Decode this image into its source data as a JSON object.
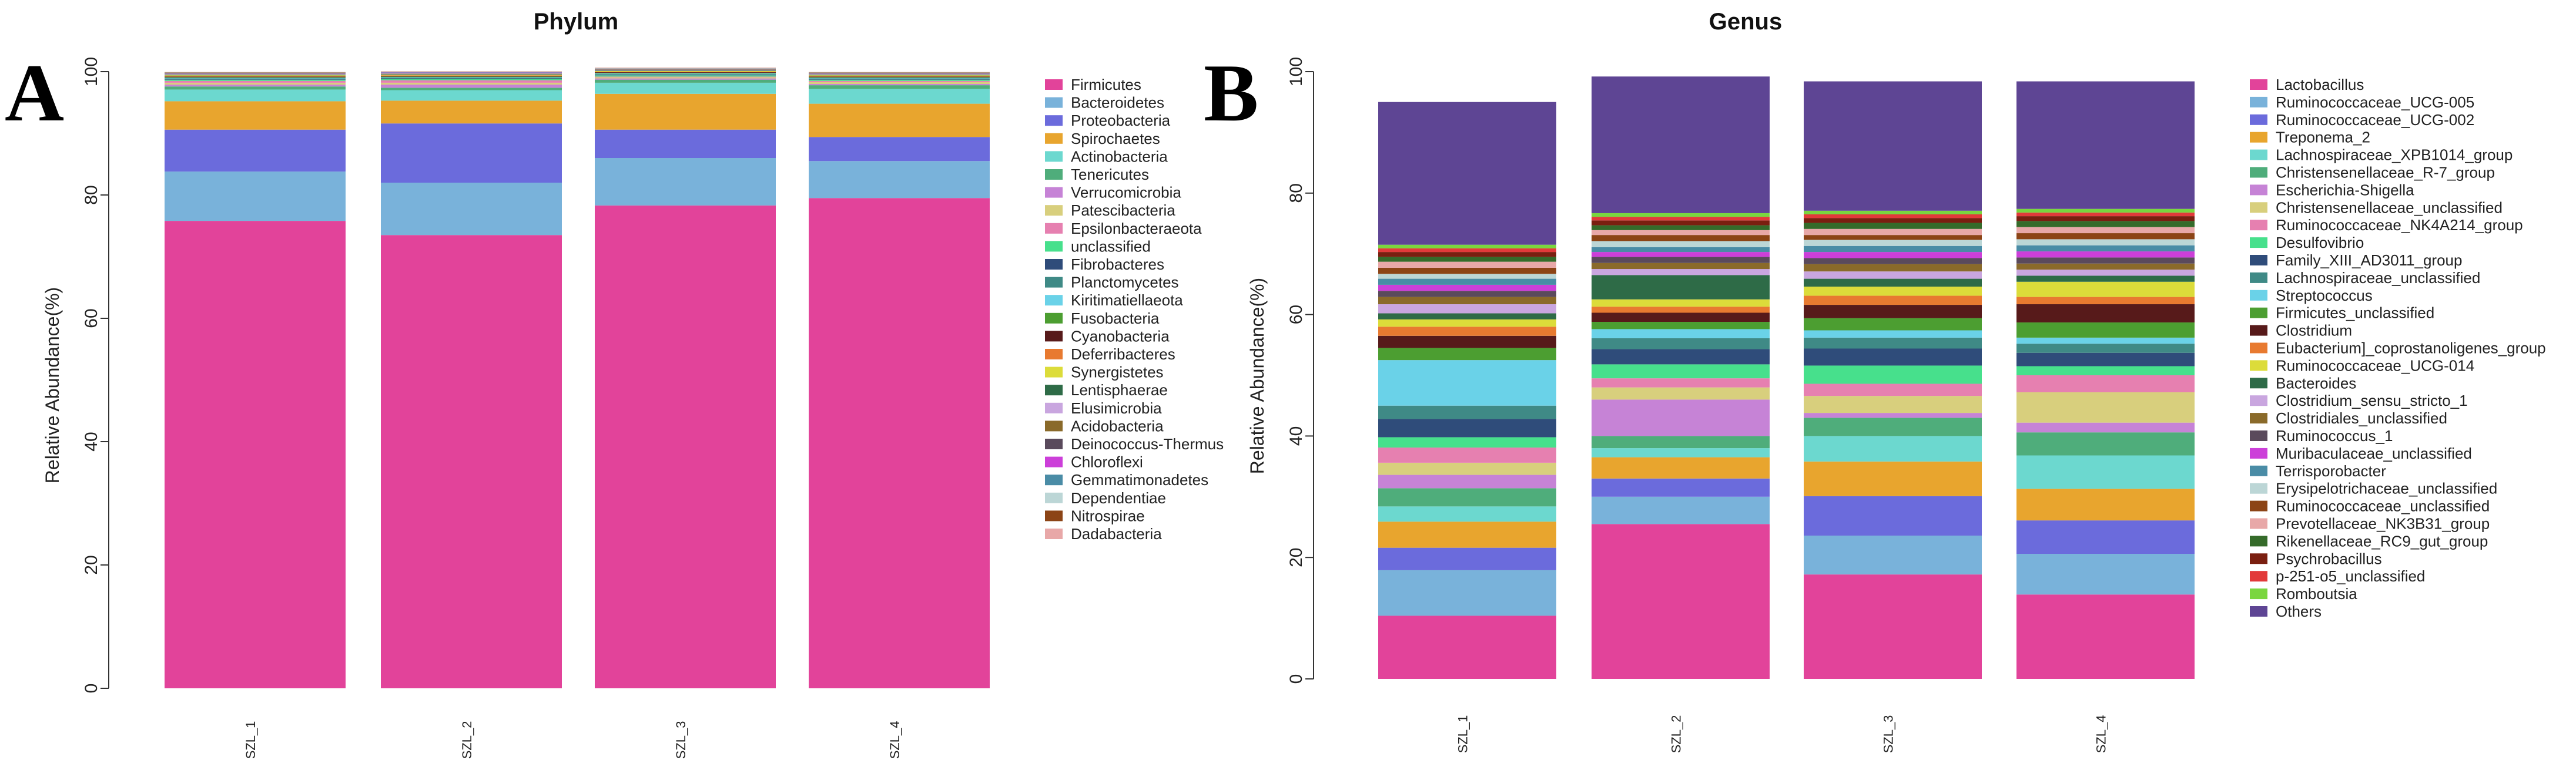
{
  "panels": {
    "a": {
      "letter": "A"
    },
    "b": {
      "letter": "B"
    }
  },
  "chart_data": [
    {
      "type": "bar",
      "stacked": true,
      "title": "Phylum",
      "xlabel": "",
      "ylabel": "Relative Abundance(%)",
      "ylim": [
        0,
        100
      ],
      "yticks": [
        "0",
        "20",
        "40",
        "60",
        "80",
        "100"
      ],
      "legend_position": "right",
      "categories": [
        "SZL_1",
        "SZL_2",
        "SZL_3",
        "SZL_4"
      ],
      "series": [
        {
          "name": "Firmicutes",
          "color": "#e2439a",
          "values": [
            75.8,
            73.5,
            78.3,
            79.5
          ]
        },
        {
          "name": "Bacteroidetes",
          "color": "#79b2da",
          "values": [
            8.0,
            8.5,
            7.7,
            6.0
          ]
        },
        {
          "name": "Proteobacteria",
          "color": "#6b6bdc",
          "values": [
            6.8,
            9.6,
            4.6,
            3.9
          ]
        },
        {
          "name": "Spirochaetes",
          "color": "#e8a52e",
          "values": [
            4.6,
            3.7,
            5.8,
            5.4
          ]
        },
        {
          "name": "Actinobacteria",
          "color": "#6cd8cf",
          "values": [
            1.9,
            1.7,
            1.8,
            2.4
          ]
        },
        {
          "name": "Tenericutes",
          "color": "#4fad7b",
          "values": [
            0.5,
            0.4,
            0.5,
            0.6
          ]
        },
        {
          "name": "Verrucomicrobia",
          "color": "#c683d6",
          "values": [
            0.3,
            0.5,
            0.2,
            0.2
          ]
        },
        {
          "name": "Patescibacteria",
          "color": "#d8cf7d",
          "values": [
            0.3,
            0.3,
            0.2,
            0.3
          ]
        },
        {
          "name": "Epsilonbacteraeota",
          "color": "#e680b0",
          "values": [
            0.3,
            0.4,
            0.1,
            0.2
          ]
        },
        {
          "name": "unclassified",
          "color": "#47e08c",
          "values": [
            0.2,
            0.2,
            0.2,
            0.2
          ]
        },
        {
          "name": "Fibrobacteres",
          "color": "#2f4c7a",
          "values": [
            0.1,
            0.1,
            0.1,
            0.1
          ]
        },
        {
          "name": "Planctomycetes",
          "color": "#3f8a86",
          "values": [
            0.1,
            0.1,
            0.1,
            0.1
          ]
        },
        {
          "name": "Kiritimatiellaeota",
          "color": "#6ad2e8",
          "values": [
            0.1,
            0.1,
            0.1,
            0.1
          ]
        },
        {
          "name": "Fusobacteria",
          "color": "#4c9e31",
          "values": [
            0.1,
            0.1,
            0.1,
            0.1
          ]
        },
        {
          "name": "Cyanobacteria",
          "color": "#571a1a",
          "values": [
            0.1,
            0.1,
            0.1,
            0.1
          ]
        },
        {
          "name": "Deferribacteres",
          "color": "#e87a30",
          "values": [
            0.1,
            0.1,
            0.1,
            0.1
          ]
        },
        {
          "name": "Synergistetes",
          "color": "#dcdc3a",
          "values": [
            0.1,
            0.1,
            0.1,
            0.1
          ]
        },
        {
          "name": "Lentisphaerae",
          "color": "#2e6b47",
          "values": [
            0.1,
            0.1,
            0.1,
            0.1
          ]
        },
        {
          "name": "Elusimicrobia",
          "color": "#c9a6df",
          "values": [
            0.1,
            0.1,
            0.1,
            0.1
          ]
        },
        {
          "name": "Acidobacteria",
          "color": "#8a6a2a",
          "values": [
            0.05,
            0.05,
            0.05,
            0.05
          ]
        },
        {
          "name": "Deinococcus-Thermus",
          "color": "#5a4a5c",
          "values": [
            0.05,
            0.05,
            0.05,
            0.05
          ]
        },
        {
          "name": "Chloroflexi",
          "color": "#cc3fd9",
          "values": [
            0.05,
            0.05,
            0.05,
            0.05
          ]
        },
        {
          "name": "Gemmatimonadetes",
          "color": "#4a8ca6",
          "values": [
            0.05,
            0.05,
            0.05,
            0.05
          ]
        },
        {
          "name": "Dependentiae",
          "color": "#bcd6d6",
          "values": [
            0.05,
            0.05,
            0.05,
            0.05
          ]
        },
        {
          "name": "Nitrospirae",
          "color": "#8c4416",
          "values": [
            0.05,
            0.05,
            0.05,
            0.05
          ]
        },
        {
          "name": "Dadabacteria",
          "color": "#e8a8a8",
          "values": [
            0.05,
            0.05,
            0.05,
            0.05
          ]
        }
      ]
    },
    {
      "type": "bar",
      "stacked": true,
      "title": "Genus",
      "xlabel": "",
      "ylabel": "Relative Abundance(%)",
      "ylim": [
        0,
        100
      ],
      "yticks": [
        "0",
        "20",
        "40",
        "60",
        "80",
        "100"
      ],
      "legend_position": "right",
      "categories": [
        "SZL_1",
        "SZL_2",
        "SZL_3",
        "SZL_4"
      ],
      "series": [
        {
          "name": "Lactobacillus",
          "color": "#e2439a",
          "values": [
            10.4,
            25.5,
            17.2,
            13.9
          ]
        },
        {
          "name": "Ruminococcaceae_UCG-005",
          "color": "#79b2da",
          "values": [
            7.5,
            4.5,
            6.4,
            6.7
          ]
        },
        {
          "name": "Ruminococcaceae_UCG-002",
          "color": "#6b6bdc",
          "values": [
            3.7,
            3.0,
            6.5,
            5.5
          ]
        },
        {
          "name": "Treponema_2",
          "color": "#e8a52e",
          "values": [
            4.3,
            3.5,
            5.7,
            5.2
          ]
        },
        {
          "name": "Lachnospiraceae_XPB1014_group",
          "color": "#6cd8cf",
          "values": [
            2.5,
            1.5,
            4.2,
            5.5
          ]
        },
        {
          "name": "Christensenellaceae_R-7_group",
          "color": "#4fad7b",
          "values": [
            3.0,
            2.0,
            3.0,
            3.8
          ]
        },
        {
          "name": "Escherichia-Shigella",
          "color": "#c683d6",
          "values": [
            2.2,
            6.0,
            0.8,
            1.6
          ]
        },
        {
          "name": "Christensenellaceae_unclassified",
          "color": "#d8cf7d",
          "values": [
            2.0,
            2.0,
            2.8,
            5.0
          ]
        },
        {
          "name": "Ruminococcaceae_NK4A214_group",
          "color": "#e680b0",
          "values": [
            2.5,
            1.5,
            2.0,
            2.8
          ]
        },
        {
          "name": "Desulfovibrio",
          "color": "#47e08c",
          "values": [
            1.7,
            2.3,
            3.0,
            1.5
          ]
        },
        {
          "name": "Family_XIII_AD3011_group",
          "color": "#2f4c7a",
          "values": [
            3.0,
            2.5,
            2.8,
            2.2
          ]
        },
        {
          "name": "Lachnospiraceae_unclassified",
          "color": "#3f8a86",
          "values": [
            2.2,
            1.8,
            1.8,
            1.5
          ]
        },
        {
          "name": "Streptococcus",
          "color": "#6ad2e8",
          "values": [
            7.5,
            1.5,
            1.2,
            1.0
          ]
        },
        {
          "name": "Firmicutes_unclassified",
          "color": "#4c9e31",
          "values": [
            2.0,
            1.2,
            2.0,
            2.5
          ]
        },
        {
          "name": "Clostridium",
          "color": "#571a1a",
          "values": [
            2.0,
            1.5,
            2.2,
            3.0
          ]
        },
        {
          "name": "Eubacterium]_coprostanoligenes_group",
          "color": "#e87a30",
          "values": [
            1.5,
            1.0,
            1.5,
            1.2
          ]
        },
        {
          "name": "Ruminococcaceae_UCG-014",
          "color": "#dcdc3a",
          "values": [
            1.2,
            1.2,
            1.5,
            2.5
          ]
        },
        {
          "name": "Bacteroides",
          "color": "#2e6b47",
          "values": [
            1.0,
            4.0,
            1.3,
            1.0
          ]
        },
        {
          "name": "Clostridium_sensu_stricto_1",
          "color": "#c9a6df",
          "values": [
            1.5,
            1.0,
            1.2,
            1.0
          ]
        },
        {
          "name": "Clostridiales_unclassified",
          "color": "#8a6a2a",
          "values": [
            1.2,
            1.0,
            1.2,
            1.0
          ]
        },
        {
          "name": "Ruminococcus_1",
          "color": "#5a4a5c",
          "values": [
            1.0,
            1.0,
            1.0,
            1.0
          ]
        },
        {
          "name": "Muribaculaceae_unclassified",
          "color": "#cc3fd9",
          "values": [
            1.0,
            0.8,
            1.0,
            1.0
          ]
        },
        {
          "name": "Terrisporobacter",
          "color": "#4a8ca6",
          "values": [
            1.0,
            0.8,
            1.0,
            1.0
          ]
        },
        {
          "name": "Erysipelotrichaceae_unclassified",
          "color": "#bcd6d6",
          "values": [
            0.8,
            1.0,
            1.0,
            1.0
          ]
        },
        {
          "name": "Ruminococcaceae_unclassified",
          "color": "#8c4416",
          "values": [
            1.0,
            1.0,
            0.8,
            1.0
          ]
        },
        {
          "name": "Prevotellaceae_NK3B31_group",
          "color": "#e8a8a8",
          "values": [
            1.0,
            0.8,
            1.0,
            1.0
          ]
        },
        {
          "name": "Rikenellaceae_RC9_gut_group",
          "color": "#356b2a",
          "values": [
            0.8,
            0.8,
            1.0,
            1.0
          ]
        },
        {
          "name": "Psychrobacillus",
          "color": "#7a1f10",
          "values": [
            0.8,
            0.8,
            0.8,
            0.8
          ]
        },
        {
          "name": "p-251-o5_unclassified",
          "color": "#e23a3a",
          "values": [
            0.6,
            0.6,
            0.6,
            0.6
          ]
        },
        {
          "name": "Romboutsia",
          "color": "#7ad63f",
          "values": [
            0.6,
            0.6,
            0.6,
            0.6
          ]
        },
        {
          "name": "Others",
          "color": "#5e4594",
          "values": [
            23.5,
            22.5,
            21.3,
            21.0
          ]
        }
      ]
    }
  ]
}
